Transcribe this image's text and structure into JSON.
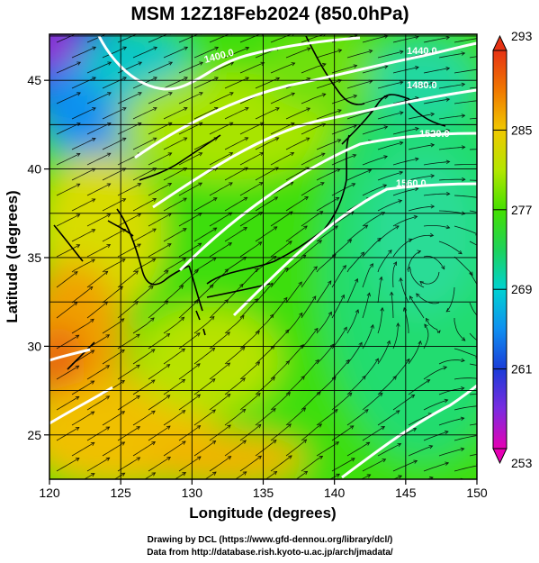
{
  "title": "MSM 12Z18Feb2024 (850.0hPa)",
  "xlabel": "Longitude (degrees)",
  "ylabel": "Latitude  (degrees)",
  "credits": [
    "Drawing by DCL (https://www.gfd-dennou.org/library/dcl/)",
    "Data from http://database.rish.kyoto-u.ac.jp/arch/jmadata/"
  ],
  "chart_data": {
    "type": "heatmap",
    "xlim": [
      120,
      150
    ],
    "ylim": [
      22.5,
      47.6
    ],
    "x_ticks": [
      120,
      125,
      130,
      135,
      140,
      145,
      150
    ],
    "y_ticks": [
      25,
      30,
      35,
      40,
      45
    ],
    "colorbar": {
      "min": 253,
      "max": 293,
      "ticks": [
        253,
        261,
        269,
        277,
        285,
        293
      ],
      "colors": [
        "#e600b4",
        "#7a2be0",
        "#1a3cd8",
        "#0f8ff0",
        "#00d2d2",
        "#1ed25a",
        "#45e000",
        "#b4e600",
        "#f0c800",
        "#f07800",
        "#e63214"
      ]
    },
    "contours": [
      {
        "label": "1400.0"
      },
      {
        "label": "1440.0"
      },
      {
        "label": "1480.0"
      },
      {
        "label": "1520.0"
      },
      {
        "label": "1560.0"
      }
    ],
    "grid": true,
    "vectors": "wind streamlines"
  },
  "colors": {
    "contour": "#ffffff",
    "coast": "#000000",
    "grid": "#000000"
  }
}
